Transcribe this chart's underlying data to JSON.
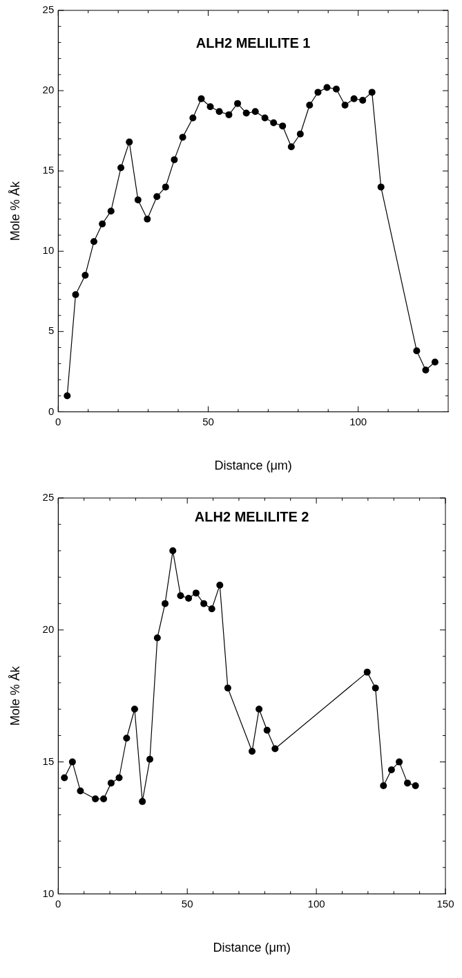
{
  "chart_data": [
    {
      "type": "line",
      "title": "ALH2 MELILITE 1",
      "xlabel": "Distance (μm)",
      "ylabel": "Mole % Åk",
      "marker": "circle",
      "line_style": "solid",
      "xlim": [
        0,
        130
      ],
      "ylim": [
        0,
        25
      ],
      "xticks": [
        0,
        {
          "value": 10,
          "label": null
        },
        {
          "value": 20,
          "label": null
        },
        {
          "value": 30,
          "label": null
        },
        {
          "value": 40,
          "label": null
        },
        50,
        {
          "value": 60,
          "label": null
        },
        {
          "value": 70,
          "label": null
        },
        {
          "value": 80,
          "label": null
        },
        {
          "value": 90,
          "label": null
        },
        100,
        {
          "value": 110,
          "label": null
        },
        {
          "value": 120,
          "label": null
        }
      ],
      "yticks": [
        0,
        {
          "value": 1,
          "label": null
        },
        {
          "value": 2,
          "label": null
        },
        {
          "value": 3,
          "label": null
        },
        {
          "value": 4,
          "label": null
        },
        5,
        {
          "value": 6,
          "label": null
        },
        {
          "value": 7,
          "label": null
        },
        {
          "value": 8,
          "label": null
        },
        {
          "value": 9,
          "label": null
        },
        10,
        {
          "value": 11,
          "label": null
        },
        {
          "value": 12,
          "label": null
        },
        {
          "value": 13,
          "label": null
        },
        {
          "value": 14,
          "label": null
        },
        15,
        {
          "value": 16,
          "label": null
        },
        {
          "value": 17,
          "label": null
        },
        {
          "value": 18,
          "label": null
        },
        {
          "value": 19,
          "label": null
        },
        20,
        {
          "value": 21,
          "label": null
        },
        {
          "value": 22,
          "label": null
        },
        {
          "value": 23,
          "label": null
        },
        {
          "value": 24,
          "label": null
        },
        25
      ],
      "series": [
        {
          "color": "#000000",
          "x": [
            3.0,
            5.8,
            9.0,
            11.9,
            14.7,
            17.6,
            20.9,
            23.7,
            26.6,
            29.7,
            32.9,
            35.8,
            38.7,
            41.5,
            44.9,
            47.7,
            50.7,
            53.7,
            56.9,
            59.8,
            62.7,
            65.7,
            68.9,
            71.8,
            74.8,
            77.7,
            80.7,
            83.8,
            86.6,
            89.6,
            92.7,
            95.6,
            98.6,
            101.5,
            104.6,
            107.6,
            119.5,
            122.5,
            125.6
          ],
          "values": [
            1.0,
            7.3,
            8.5,
            10.6,
            11.7,
            12.5,
            15.2,
            16.8,
            13.2,
            12.0,
            13.4,
            14.0,
            15.7,
            17.1,
            18.3,
            19.5,
            19.0,
            18.7,
            18.5,
            19.2,
            18.6,
            18.7,
            18.3,
            18.0,
            17.8,
            16.5,
            17.3,
            19.1,
            19.9,
            20.2,
            20.1,
            19.1,
            19.5,
            19.4,
            19.9,
            14.0,
            3.8,
            2.6,
            3.1
          ]
        }
      ]
    },
    {
      "type": "line",
      "title": "ALH2 MELILITE 2",
      "xlabel": "Distance (μm)",
      "ylabel": "Mole % Åk",
      "marker": "circle",
      "line_style": "solid",
      "xlim": [
        0,
        150
      ],
      "ylim": [
        10,
        25
      ],
      "xticks": [
        0,
        {
          "value": 10,
          "label": null
        },
        {
          "value": 20,
          "label": null
        },
        {
          "value": 30,
          "label": null
        },
        {
          "value": 40,
          "label": null
        },
        50,
        {
          "value": 60,
          "label": null
        },
        {
          "value": 70,
          "label": null
        },
        {
          "value": 80,
          "label": null
        },
        {
          "value": 90,
          "label": null
        },
        100,
        {
          "value": 110,
          "label": null
        },
        {
          "value": 120,
          "label": null
        },
        {
          "value": 130,
          "label": null
        },
        {
          "value": 140,
          "label": null
        },
        150
      ],
      "yticks": [
        10,
        {
          "value": 11,
          "label": null
        },
        {
          "value": 12,
          "label": null
        },
        {
          "value": 13,
          "label": null
        },
        {
          "value": 14,
          "label": null
        },
        15,
        {
          "value": 16,
          "label": null
        },
        {
          "value": 17,
          "label": null
        },
        {
          "value": 18,
          "label": null
        },
        {
          "value": 19,
          "label": null
        },
        20,
        {
          "value": 21,
          "label": null
        },
        {
          "value": 22,
          "label": null
        },
        {
          "value": 23,
          "label": null
        },
        {
          "value": 24,
          "label": null
        },
        25
      ],
      "series": [
        {
          "color": "#000000",
          "x": [
            2.4,
            5.5,
            8.6,
            14.4,
            17.6,
            20.5,
            23.6,
            26.5,
            29.6,
            32.6,
            35.5,
            38.4,
            41.4,
            44.4,
            47.4,
            50.5,
            53.4,
            56.4,
            59.5,
            62.6,
            65.7,
            75.1,
            77.8,
            80.9,
            84.0,
            119.7,
            122.9,
            126.0,
            129.1,
            132.1,
            135.3,
            138.4
          ],
          "values": [
            14.4,
            15.0,
            13.9,
            13.6,
            13.6,
            14.2,
            14.4,
            15.9,
            17.0,
            13.5,
            15.1,
            19.7,
            21.0,
            23.0,
            21.3,
            21.2,
            21.4,
            21.0,
            20.8,
            21.7,
            17.8,
            15.4,
            17.0,
            16.2,
            15.5,
            18.4,
            17.8,
            14.1,
            14.7,
            15.0,
            14.2,
            14.1
          ]
        }
      ]
    }
  ]
}
